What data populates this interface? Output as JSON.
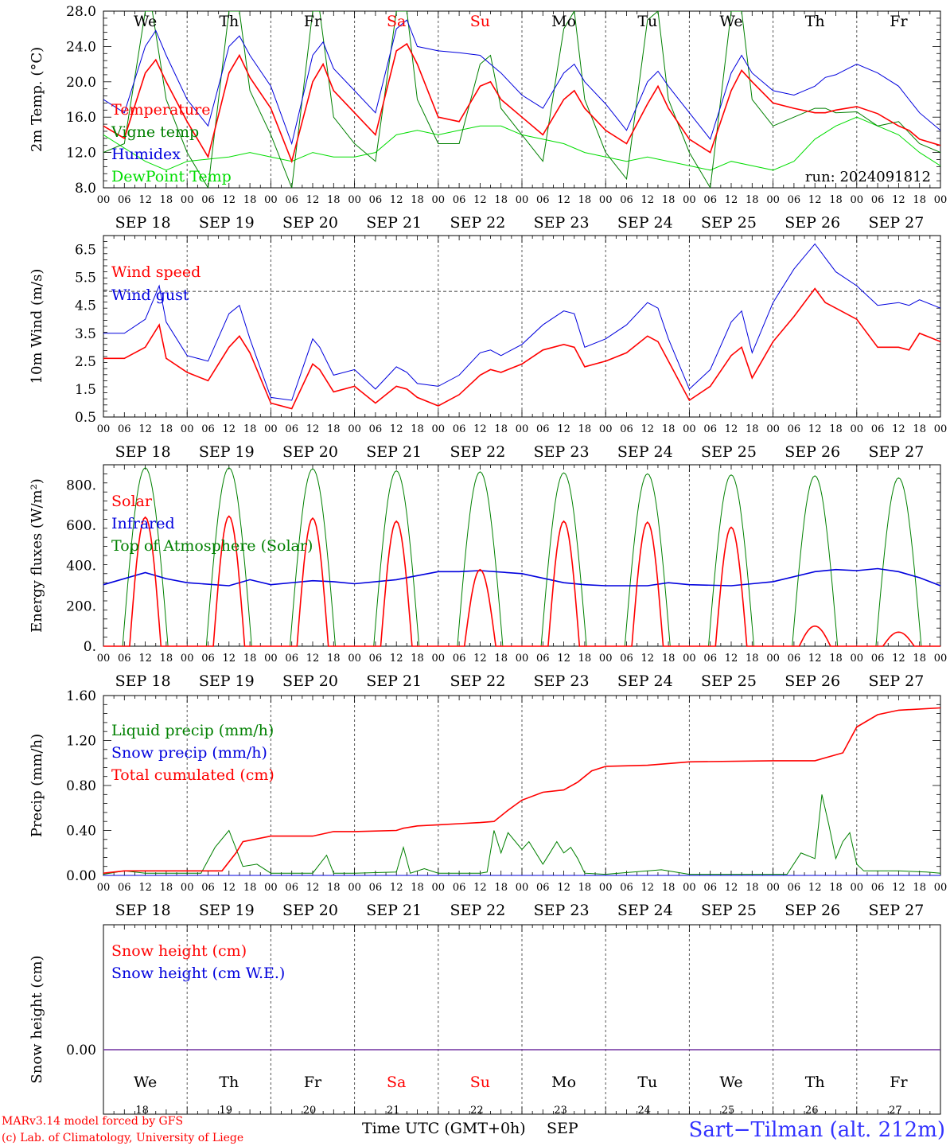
{
  "chart_data": [
    {
      "type": "line",
      "ylabel": "2m Temp. (°C)",
      "yticks": [
        "8.0",
        "12.0",
        "16.0",
        "20.0",
        "24.0",
        "28.0"
      ],
      "ylim": [
        8,
        28
      ],
      "annotation": "run: 2024091812",
      "day_names_top": [
        "We",
        "Th",
        "Fr",
        "Sa",
        "Su",
        "Mo",
        "Tu",
        "We",
        "Th",
        "Fr"
      ],
      "x_hours": [
        0,
        12,
        15,
        24,
        36,
        39,
        48,
        60,
        63,
        72,
        84,
        87,
        96,
        108,
        111,
        120,
        132,
        135,
        144,
        156,
        159,
        168,
        180,
        183,
        192,
        204,
        207,
        216,
        228,
        231,
        240
      ],
      "series": [
        {
          "name": "Temperature",
          "color": "#ff0000",
          "x": [
            0,
            6,
            12,
            15,
            18,
            24,
            30,
            36,
            39,
            42,
            48,
            54,
            60,
            63,
            66,
            72,
            78,
            84,
            87,
            90,
            96,
            102,
            108,
            111,
            114,
            120,
            126,
            132,
            135,
            138,
            144,
            150,
            156,
            159,
            162,
            168,
            174,
            180,
            183,
            186,
            192,
            198,
            204,
            207,
            210,
            216,
            222,
            228,
            231,
            234,
            240
          ],
          "values": [
            15,
            13.6,
            21,
            22.5,
            20,
            15.5,
            11.5,
            21,
            23,
            20.5,
            17,
            11,
            20,
            22,
            19,
            16.5,
            14,
            23.5,
            24.3,
            22,
            16,
            15.5,
            19.5,
            20,
            18,
            16,
            14,
            18,
            19,
            17,
            14.5,
            13,
            17.5,
            19.5,
            17,
            13.5,
            12,
            19,
            21.3,
            20,
            17.6,
            17,
            16.5,
            16.5,
            16.8,
            17.2,
            16.4,
            15,
            14.5,
            13.5,
            12.8
          ]
        },
        {
          "name": "Vigne temp",
          "color": "#008000",
          "x": [
            0,
            6,
            12,
            14,
            18,
            24,
            30,
            36,
            39,
            42,
            48,
            54,
            60,
            62,
            66,
            72,
            78,
            84,
            87,
            90,
            96,
            102,
            108,
            111,
            114,
            120,
            126,
            132,
            135,
            138,
            144,
            150,
            156,
            159,
            162,
            168,
            174,
            180,
            183,
            186,
            192,
            198,
            204,
            207,
            210,
            216,
            222,
            228,
            234,
            240
          ],
          "values": [
            12,
            13,
            28,
            28,
            18,
            12,
            8,
            28,
            28,
            19,
            14,
            8,
            28,
            28,
            16,
            13,
            11,
            28,
            28,
            18,
            13,
            13,
            22,
            23,
            17,
            14,
            11,
            26,
            28,
            18,
            12,
            9,
            27,
            28,
            18,
            12,
            8,
            28,
            28,
            18,
            15,
            16,
            17,
            17,
            16.5,
            16.6,
            15,
            15.5,
            13,
            12
          ]
        },
        {
          "name": "Humidex",
          "color": "#0000dd",
          "x": [
            0,
            6,
            12,
            15,
            18,
            24,
            30,
            36,
            39,
            42,
            48,
            54,
            60,
            63,
            66,
            72,
            78,
            84,
            87,
            90,
            96,
            102,
            108,
            111,
            114,
            120,
            126,
            132,
            135,
            138,
            144,
            150,
            156,
            159,
            162,
            168,
            174,
            180,
            183,
            186,
            192,
            198,
            204,
            207,
            210,
            216,
            222,
            228,
            231,
            234,
            240
          ],
          "values": [
            18,
            16.5,
            24,
            25.8,
            23,
            18,
            15,
            24,
            25.2,
            23,
            19.5,
            13,
            23,
            24.5,
            21.5,
            19,
            16.5,
            26,
            27,
            24,
            23.5,
            23.3,
            23,
            22,
            21,
            18.5,
            17,
            21,
            22,
            20,
            17.5,
            14.5,
            20,
            21.2,
            19.5,
            16.5,
            13.5,
            21,
            23,
            21,
            19,
            18.5,
            19.5,
            20.5,
            20.8,
            22,
            21,
            19.5,
            18,
            16.5,
            14.5
          ]
        },
        {
          "name": "DewPoint Temp",
          "color": "#00dd00",
          "x": [
            0,
            12,
            18,
            24,
            36,
            42,
            48,
            54,
            60,
            66,
            72,
            78,
            84,
            90,
            96,
            102,
            108,
            114,
            120,
            126,
            132,
            138,
            144,
            150,
            156,
            162,
            168,
            174,
            180,
            186,
            192,
            198,
            204,
            210,
            216,
            222,
            228,
            234,
            240
          ],
          "values": [
            14,
            11,
            10,
            11,
            11.5,
            12,
            11.5,
            11,
            12,
            11.5,
            11.5,
            12,
            14,
            14.5,
            14,
            14.5,
            15,
            15,
            14,
            13.5,
            13,
            12,
            11.5,
            11,
            11.5,
            11,
            10.5,
            10,
            11,
            10.5,
            10,
            11,
            13.5,
            15,
            16,
            15,
            14,
            12,
            10.5
          ]
        }
      ]
    },
    {
      "type": "line",
      "ylabel": "10m Wind (m/s)",
      "yticks": [
        "0.5",
        "1.5",
        "2.5",
        "3.5",
        "4.5",
        "5.5",
        "6.5"
      ],
      "ylim": [
        0.5,
        7.0
      ],
      "reference_line": 5.0,
      "series": [
        {
          "name": "Wind speed",
          "color": "#ff0000",
          "x": [
            0,
            6,
            12,
            16,
            18,
            24,
            30,
            36,
            39,
            42,
            48,
            54,
            60,
            62,
            66,
            72,
            78,
            84,
            87,
            90,
            96,
            102,
            108,
            111,
            114,
            120,
            126,
            132,
            135,
            138,
            144,
            150,
            156,
            159,
            162,
            168,
            174,
            180,
            183,
            186,
            192,
            198,
            204,
            207,
            210,
            216,
            222,
            228,
            231,
            234,
            240
          ],
          "values": [
            2.6,
            2.6,
            3.0,
            3.8,
            2.6,
            2.1,
            1.8,
            3.0,
            3.4,
            2.8,
            1.0,
            0.8,
            2.4,
            2.2,
            1.4,
            1.6,
            1.0,
            1.6,
            1.5,
            1.2,
            0.9,
            1.3,
            2.0,
            2.2,
            2.1,
            2.4,
            2.9,
            3.1,
            3.0,
            2.3,
            2.5,
            2.8,
            3.4,
            3.2,
            2.5,
            1.1,
            1.6,
            2.7,
            3.0,
            1.9,
            3.2,
            4.1,
            5.1,
            4.6,
            4.4,
            4.0,
            3.0,
            3.0,
            2.9,
            3.5,
            3.2
          ]
        },
        {
          "name": "Wind gust",
          "color": "#0000dd",
          "x": [
            0,
            6,
            12,
            16,
            18,
            24,
            30,
            36,
            39,
            42,
            48,
            54,
            60,
            62,
            66,
            72,
            78,
            84,
            87,
            90,
            96,
            102,
            108,
            111,
            114,
            120,
            126,
            132,
            135,
            138,
            144,
            150,
            156,
            159,
            162,
            168,
            174,
            180,
            183,
            186,
            192,
            198,
            204,
            207,
            210,
            216,
            222,
            228,
            231,
            234,
            240
          ],
          "values": [
            3.5,
            3.5,
            4.0,
            5.2,
            3.9,
            2.7,
            2.5,
            4.2,
            4.5,
            3.3,
            1.2,
            1.1,
            3.3,
            3.0,
            2.0,
            2.2,
            1.5,
            2.3,
            2.1,
            1.7,
            1.6,
            2.0,
            2.8,
            2.9,
            2.7,
            3.1,
            3.8,
            4.3,
            4.2,
            3.0,
            3.3,
            3.8,
            4.6,
            4.4,
            3.3,
            1.5,
            2.2,
            3.9,
            4.3,
            2.8,
            4.6,
            5.8,
            6.7,
            6.2,
            5.7,
            5.2,
            4.5,
            4.6,
            4.5,
            4.7,
            4.4
          ]
        }
      ]
    },
    {
      "type": "line",
      "ylabel": "Energy fluxes (W/m²)",
      "yticks": [
        "0.",
        "200.",
        "400.",
        "600.",
        "800."
      ],
      "ylim": [
        0,
        900
      ],
      "series": [
        {
          "name": "Solar",
          "color": "#ff0000",
          "peaks": [
            640,
            645,
            635,
            620,
            380,
            620,
            615,
            590,
            100,
            70
          ]
        },
        {
          "name": "Infrared",
          "color": "#0000dd",
          "x": [
            0,
            12,
            18,
            24,
            36,
            42,
            48,
            60,
            66,
            72,
            84,
            90,
            96,
            102,
            108,
            120,
            132,
            138,
            144,
            156,
            162,
            168,
            180,
            186,
            192,
            204,
            210,
            216,
            222,
            228,
            234,
            240
          ],
          "values": [
            305,
            365,
            335,
            315,
            300,
            330,
            305,
            325,
            320,
            310,
            330,
            350,
            370,
            370,
            375,
            360,
            315,
            305,
            300,
            300,
            315,
            305,
            300,
            310,
            320,
            370,
            380,
            375,
            385,
            370,
            340,
            300
          ]
        },
        {
          "name": "Top of Atmosphere (Solar)",
          "color": "#008000",
          "peaks": [
            885,
            885,
            880,
            870,
            865,
            860,
            855,
            850,
            845,
            835
          ]
        }
      ]
    },
    {
      "type": "line",
      "ylabel": "Precip (mm/h)",
      "yticks": [
        "0.00",
        "0.40",
        "0.80",
        "1.20",
        "1.60"
      ],
      "ylim": [
        0,
        1.6
      ],
      "series": [
        {
          "name": "Liquid precip (mm/h)",
          "color": "#008000",
          "x": [
            0,
            6,
            12,
            18,
            28,
            32,
            36,
            40,
            44,
            48,
            60,
            64,
            66,
            72,
            84,
            86,
            88,
            92,
            96,
            108,
            110,
            112,
            114,
            116,
            120,
            122,
            126,
            128,
            130,
            132,
            134,
            136,
            138,
            144,
            160,
            168,
            196,
            200,
            204,
            206,
            208,
            210,
            212,
            214,
            216,
            218,
            228,
            236,
            240
          ],
          "values": [
            0.01,
            0.04,
            0.02,
            0.02,
            0.02,
            0.25,
            0.4,
            0.08,
            0.1,
            0.02,
            0.02,
            0.18,
            0.02,
            0.02,
            0.03,
            0.25,
            0.02,
            0.06,
            0.02,
            0.02,
            0.03,
            0.4,
            0.2,
            0.38,
            0.23,
            0.3,
            0.1,
            0.2,
            0.3,
            0.2,
            0.25,
            0.15,
            0.02,
            0.01,
            0.05,
            0.01,
            0.01,
            0.2,
            0.15,
            0.72,
            0.45,
            0.15,
            0.3,
            0.38,
            0.1,
            0.04,
            0.04,
            0.03,
            0.02
          ]
        },
        {
          "name": "Snow precip (mm/h)",
          "color": "#0000dd",
          "x": [
            0,
            240
          ],
          "values": [
            0,
            0
          ]
        },
        {
          "name": "Total cumulated (cm)",
          "color": "#ff0000",
          "x": [
            0,
            6,
            24,
            34,
            38,
            40,
            48,
            52,
            60,
            66,
            72,
            84,
            86,
            90,
            96,
            102,
            108,
            112,
            116,
            120,
            126,
            132,
            136,
            140,
            144,
            156,
            168,
            192,
            204,
            212,
            216,
            222,
            228,
            240
          ],
          "values": [
            0.02,
            0.04,
            0.04,
            0.04,
            0.2,
            0.3,
            0.35,
            0.35,
            0.35,
            0.39,
            0.39,
            0.4,
            0.42,
            0.44,
            0.45,
            0.46,
            0.47,
            0.48,
            0.58,
            0.67,
            0.74,
            0.76,
            0.83,
            0.93,
            0.97,
            0.98,
            1.01,
            1.02,
            1.02,
            1.09,
            1.32,
            1.43,
            1.47,
            1.49
          ]
        }
      ]
    },
    {
      "type": "line",
      "ylabel": "Snow height (cm)",
      "yticks": [
        "0.00"
      ],
      "series": [
        {
          "name": "Snow height (cm)",
          "color": "#ff0000",
          "x": [
            0,
            240
          ],
          "values": [
            0,
            0
          ]
        },
        {
          "name": "Snow height (cm W.E.)",
          "color": "#0000dd",
          "x": [
            0,
            240
          ],
          "values": [
            0,
            0
          ]
        }
      ]
    }
  ],
  "x_axis": {
    "hour_ticks": [
      "00",
      "06",
      "12",
      "18"
    ],
    "final_tick": "00",
    "dates": [
      "SEP 18",
      "SEP 19",
      "SEP 20",
      "SEP 21",
      "SEP 22",
      "SEP 23",
      "SEP 24",
      "SEP 25",
      "SEP 26",
      "SEP 27"
    ],
    "day_names_bottom": [
      "We",
      "Th",
      "Fr",
      "Sa",
      "Su",
      "Mo",
      "Tu",
      "We",
      "Th",
      "Fr"
    ],
    "day_numbers": [
      "18",
      "19",
      "20",
      "21",
      "22",
      "23",
      "24",
      "25",
      "26",
      "27"
    ],
    "xlabel": "Time UTC (GMT+0h)",
    "month": "SEP",
    "weekend_color": "#ff0000",
    "weekend_index": [
      3,
      4
    ]
  },
  "footer": {
    "model": "MARv3.14 model forced by GFS",
    "credit": "(c) Lab. of Climatology, University of Liege",
    "station": "Sart−Tilman (alt. 212m)"
  }
}
